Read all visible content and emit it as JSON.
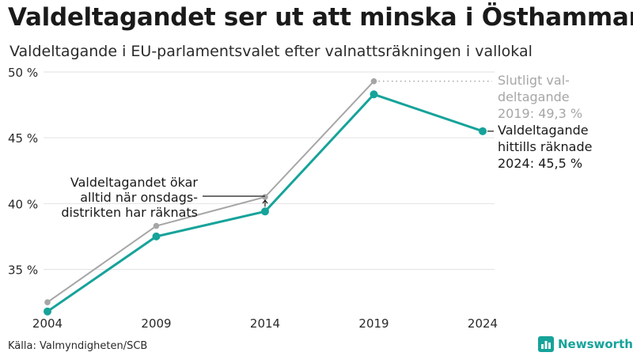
{
  "title": "Valdeltagandet ser ut att minska i Östhammar",
  "subtitle": "Valdeltagande i EU-parlamentsvalet efter valnattsräkningen i vallokal",
  "source": "Källa: Valmyndigheten/SCB",
  "brand": "Newsworthy",
  "colors": {
    "preliminary": "#16a39a",
    "final": "#a6a6a6",
    "grid": "#e2e2e2",
    "text": "#1a1a1a"
  },
  "chart_data": {
    "type": "line",
    "x": [
      2004,
      2009,
      2014,
      2019,
      2024
    ],
    "ylim": [
      31,
      50
    ],
    "yticks": [
      35,
      40,
      45,
      50
    ],
    "ytick_labels": [
      "35 %",
      "40 %",
      "45 %",
      "50 %"
    ],
    "grid": true,
    "series": [
      {
        "key": "final",
        "values": [
          32.5,
          38.3,
          40.5,
          49.3,
          null
        ]
      },
      {
        "key": "preliminary",
        "values": [
          31.8,
          37.5,
          39.4,
          48.3,
          45.5
        ]
      }
    ],
    "annotations": {
      "final_label": [
        "Slutligt val-",
        "deltagande",
        "2019: 49,3 %"
      ],
      "preliminary_label": [
        "Valdeltagande",
        "hittills räknade",
        "2024: 45,5 %"
      ],
      "gap_note": [
        "Valdeltagandet ökar",
        "alltid när onsdags-",
        "distrikten har räknats"
      ]
    }
  }
}
